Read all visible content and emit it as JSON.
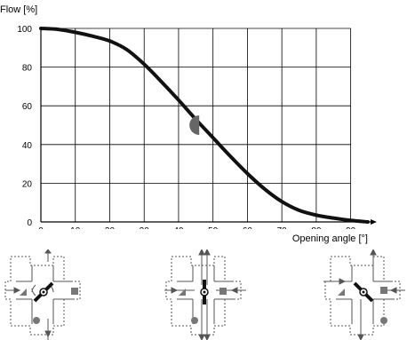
{
  "chart_data": {
    "type": "line",
    "ylabel": "Flow [%]",
    "xlabel": "Opening angle [°]",
    "xlim": [
      0,
      95
    ],
    "ylim": [
      0,
      100
    ],
    "x_ticks": [
      0,
      10,
      20,
      30,
      40,
      50,
      60,
      70,
      80,
      90
    ],
    "y_ticks": [
      0,
      20,
      40,
      60,
      80,
      100
    ],
    "grid": true,
    "series": [
      {
        "x": [
          0,
          5,
          10,
          15,
          20,
          25,
          30,
          35,
          40,
          45,
          50,
          55,
          60,
          65,
          70,
          75,
          80,
          85,
          90,
          95
        ],
        "y": [
          100,
          99.5,
          98,
          96,
          93.5,
          89,
          81.5,
          72.5,
          63,
          53,
          43.5,
          34,
          25,
          17,
          10.5,
          6,
          3.5,
          2,
          0.8,
          0
        ]
      }
    ],
    "annotations": [
      {
        "type": "half-disc-marker",
        "x": 46,
        "y": 50
      }
    ]
  },
  "valve_diagrams": [
    {
      "position": "left"
    },
    {
      "position": "center"
    },
    {
      "position": "right"
    }
  ],
  "colors": {
    "curve": "#111111",
    "grid": "#000000",
    "marker": "#666666",
    "arrow": "#555555",
    "valve_outline": "#555555"
  }
}
